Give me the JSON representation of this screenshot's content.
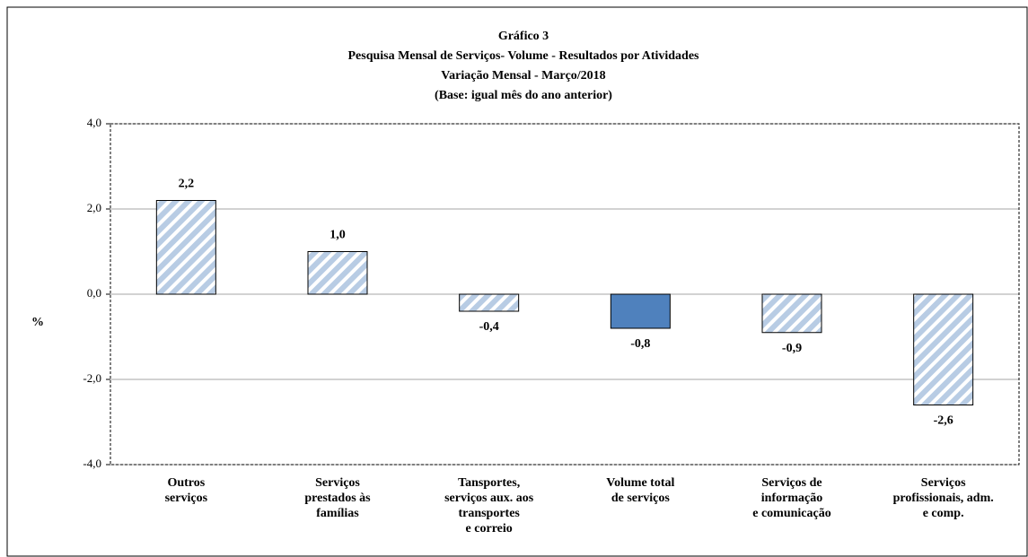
{
  "chart_data": {
    "type": "bar",
    "title": [
      "Gráfico 3",
      "Pesquisa  Mensal de Serviços- Volume - Resultados por Atividades",
      "Variação Mensal - Março/2018",
      "(Base: igual mês do ano anterior)"
    ],
    "y_label": "%",
    "categories": [
      "Outros\nserviços",
      "Serviços\nprestados às\nfamílias",
      "Tansportes,\nserviços aux. aos\ntransportes\ne correio",
      "Volume total\nde serviços",
      "Serviços de\ninformação\ne comunicação",
      "Serviços\nprofissionais, adm.\ne comp."
    ],
    "values": [
      2.2,
      1.0,
      -0.4,
      -0.8,
      -0.9,
      -2.6
    ],
    "value_labels": [
      "2,2",
      "1,0",
      "-0,4",
      "-0,8",
      "-0,9",
      "-2,6"
    ],
    "bar_styles": [
      "hatched",
      "hatched",
      "hatched",
      "solid",
      "hatched",
      "hatched"
    ],
    "color": "#4f81bd",
    "hatch_color": "#b8cce4",
    "ylim": [
      -4,
      4
    ],
    "yticks": [
      {
        "value": -4,
        "label": "-4,0"
      },
      {
        "value": -2,
        "label": "-2,0"
      },
      {
        "value": 0,
        "label": "0,0"
      },
      {
        "value": 2,
        "label": "2,0"
      },
      {
        "value": 4,
        "label": "4,0"
      }
    ],
    "grid": true
  }
}
